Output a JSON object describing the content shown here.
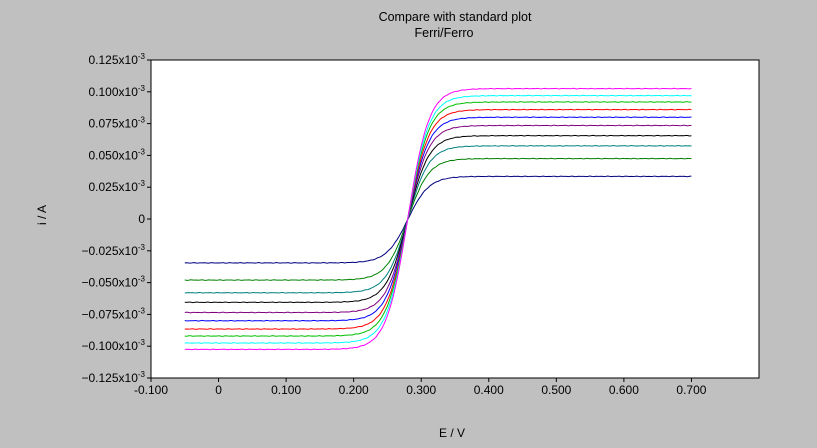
{
  "chart_data": {
    "type": "line",
    "title": "Compare with standard plot",
    "subtitle": "Ferri/Ferro",
    "xlabel": "E / V",
    "ylabel": "i / A",
    "xlim": [
      -0.1,
      0.8
    ],
    "ylim": [
      -0.125,
      0.125
    ],
    "y_unit_note": "values in units of 10^-3 A",
    "grid": false,
    "legend": "none",
    "x_ticks": [
      -0.1,
      0,
      0.1,
      0.2,
      0.3,
      0.4,
      0.5,
      0.6,
      0.7
    ],
    "x_tick_labels": [
      "-0.100",
      "0",
      "0.100",
      "0.200",
      "0.300",
      "0.400",
      "0.500",
      "0.600",
      "0.700"
    ],
    "y_ticks": [
      0.125,
      0.1,
      0.075,
      0.05,
      0.025,
      0,
      -0.025,
      -0.05,
      -0.075,
      -0.1,
      -0.125
    ],
    "y_tick_labels": [
      "0.125x10",
      "0.100x10",
      "0.075x10",
      "0.050x10",
      "0.025x10",
      "0",
      "−0.025x10",
      "−0.050x10",
      "−0.075x10",
      "−0.100x10",
      "−0.125x10"
    ],
    "y_tick_exponent": "-3",
    "x_range_of_data": [
      -0.05,
      0.7
    ],
    "half_wave_potential": 0.28,
    "series": [
      {
        "color": "#000080",
        "plateau_pos": 0.0335,
        "plateau_neg": -0.0345,
        "points": [
          [
            -0.05,
            -0.0345
          ],
          [
            0.1,
            -0.0333
          ],
          [
            0.2,
            -0.029
          ],
          [
            0.25,
            -0.018
          ],
          [
            0.28,
            0.0
          ],
          [
            0.31,
            0.018
          ],
          [
            0.35,
            0.029
          ],
          [
            0.4,
            0.032
          ],
          [
            0.55,
            0.0333
          ],
          [
            0.7,
            0.0335
          ]
        ]
      },
      {
        "color": "#008000",
        "plateau_pos": 0.0475,
        "plateau_neg": -0.048,
        "points": [
          [
            -0.05,
            -0.048
          ],
          [
            0.1,
            -0.0465
          ],
          [
            0.2,
            -0.04
          ],
          [
            0.25,
            -0.025
          ],
          [
            0.28,
            0.0
          ],
          [
            0.31,
            0.025
          ],
          [
            0.35,
            0.04
          ],
          [
            0.4,
            0.045
          ],
          [
            0.55,
            0.047
          ],
          [
            0.7,
            0.0475
          ]
        ]
      },
      {
        "color": "#008080",
        "plateau_pos": 0.0575,
        "plateau_neg": -0.058,
        "points": [
          [
            -0.05,
            -0.058
          ],
          [
            0.1,
            -0.0565
          ],
          [
            0.2,
            -0.0485
          ],
          [
            0.25,
            -0.03
          ],
          [
            0.28,
            0.0
          ],
          [
            0.31,
            0.03
          ],
          [
            0.35,
            0.0485
          ],
          [
            0.4,
            0.0545
          ],
          [
            0.55,
            0.057
          ],
          [
            0.7,
            0.0575
          ]
        ]
      },
      {
        "color": "#000000",
        "plateau_pos": 0.0655,
        "plateau_neg": -0.0655,
        "points": [
          [
            -0.05,
            -0.0655
          ],
          [
            0.1,
            -0.064
          ],
          [
            0.2,
            -0.055
          ],
          [
            0.25,
            -0.034
          ],
          [
            0.28,
            0.0
          ],
          [
            0.31,
            0.034
          ],
          [
            0.35,
            0.055
          ],
          [
            0.4,
            0.062
          ],
          [
            0.55,
            0.065
          ],
          [
            0.7,
            0.0655
          ]
        ]
      },
      {
        "color": "#800080",
        "plateau_pos": 0.0735,
        "plateau_neg": -0.0735,
        "points": [
          [
            -0.05,
            -0.0735
          ],
          [
            0.1,
            -0.0718
          ],
          [
            0.2,
            -0.0615
          ],
          [
            0.25,
            -0.038
          ],
          [
            0.28,
            0.0
          ],
          [
            0.31,
            0.038
          ],
          [
            0.35,
            0.0615
          ],
          [
            0.4,
            0.0695
          ],
          [
            0.55,
            0.073
          ],
          [
            0.7,
            0.0735
          ]
        ]
      },
      {
        "color": "#0000ff",
        "plateau_pos": 0.08,
        "plateau_neg": -0.08,
        "points": [
          [
            -0.05,
            -0.08
          ],
          [
            0.1,
            -0.078
          ],
          [
            0.2,
            -0.067
          ],
          [
            0.25,
            -0.0415
          ],
          [
            0.28,
            0.0
          ],
          [
            0.31,
            0.0415
          ],
          [
            0.35,
            0.067
          ],
          [
            0.4,
            0.0755
          ],
          [
            0.55,
            0.0795
          ],
          [
            0.7,
            0.08
          ]
        ]
      },
      {
        "color": "#ff0000",
        "plateau_pos": 0.086,
        "plateau_neg": -0.0865,
        "points": [
          [
            -0.05,
            -0.0865
          ],
          [
            0.1,
            -0.0845
          ],
          [
            0.2,
            -0.0725
          ],
          [
            0.25,
            -0.0448
          ],
          [
            0.28,
            0.0
          ],
          [
            0.31,
            0.0448
          ],
          [
            0.35,
            0.0725
          ],
          [
            0.4,
            0.0815
          ],
          [
            0.55,
            0.0855
          ],
          [
            0.7,
            0.086
          ]
        ]
      },
      {
        "color": "#00c000",
        "plateau_pos": 0.092,
        "plateau_neg": -0.092,
        "points": [
          [
            -0.05,
            -0.092
          ],
          [
            0.1,
            -0.0898
          ],
          [
            0.2,
            -0.077
          ],
          [
            0.25,
            -0.0478
          ],
          [
            0.28,
            0.0
          ],
          [
            0.31,
            0.0478
          ],
          [
            0.35,
            0.077
          ],
          [
            0.4,
            0.087
          ],
          [
            0.55,
            0.0915
          ],
          [
            0.7,
            0.092
          ]
        ]
      },
      {
        "color": "#00ffff",
        "plateau_pos": 0.097,
        "plateau_neg": -0.0975,
        "points": [
          [
            -0.05,
            -0.0975
          ],
          [
            0.1,
            -0.095
          ],
          [
            0.2,
            -0.0815
          ],
          [
            0.25,
            -0.0505
          ],
          [
            0.28,
            0.0
          ],
          [
            0.31,
            0.0505
          ],
          [
            0.35,
            0.0815
          ],
          [
            0.4,
            0.0918
          ],
          [
            0.55,
            0.0965
          ],
          [
            0.7,
            0.097
          ]
        ]
      },
      {
        "color": "#ff00ff",
        "plateau_pos": 0.1025,
        "plateau_neg": -0.1025,
        "points": [
          [
            -0.05,
            -0.1025
          ],
          [
            0.1,
            -0.1
          ],
          [
            0.2,
            -0.086
          ],
          [
            0.25,
            -0.0532
          ],
          [
            0.28,
            0.0
          ],
          [
            0.31,
            0.0532
          ],
          [
            0.35,
            0.086
          ],
          [
            0.4,
            0.097
          ],
          [
            0.55,
            0.102
          ],
          [
            0.7,
            0.1025
          ]
        ]
      }
    ]
  }
}
